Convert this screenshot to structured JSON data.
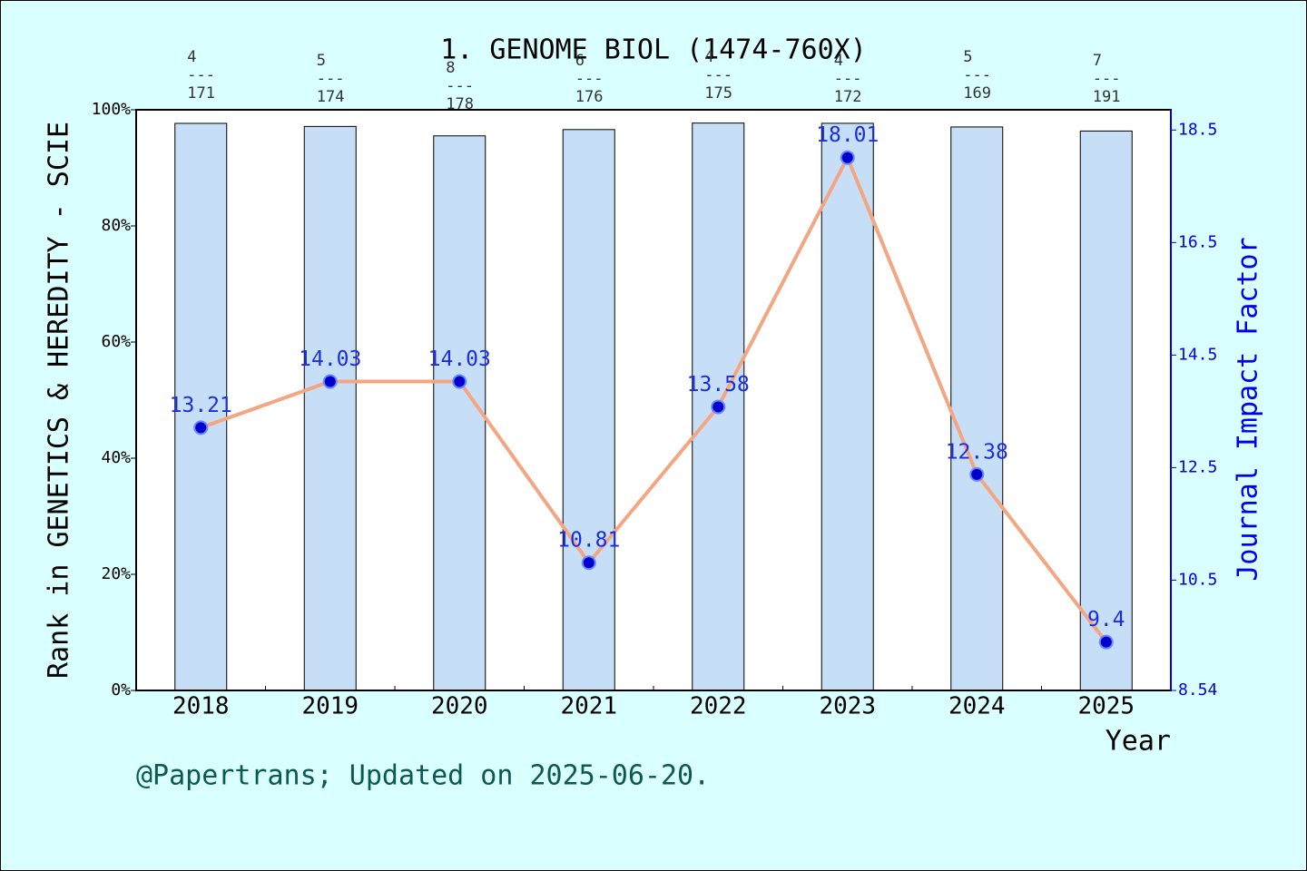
{
  "chart_data": {
    "type": "bar",
    "title": "1. GENOME BIOL (1474-760X)",
    "x_label": "Year",
    "y_label": "Rank in GENETICS & HEREDITY - SCIE",
    "y2_label": "Journal Impact Factor",
    "note": "@Papertrans; Updated on 2025-06-20.",
    "categories": [
      "2018",
      "2019",
      "2020",
      "2021",
      "2022",
      "2023",
      "2024",
      "2025"
    ],
    "ylim": [
      0,
      100
    ],
    "yticks": [
      {
        "value": 0,
        "label": "0%"
      },
      {
        "value": 20,
        "label": "20%"
      },
      {
        "value": 40,
        "label": "40%"
      },
      {
        "value": 60,
        "label": "60%"
      },
      {
        "value": 80,
        "label": "80%"
      },
      {
        "value": 100,
        "label": "100%"
      }
    ],
    "y2lim": [
      8.54,
      18.86
    ],
    "y2ticks": [
      8.54,
      10.5,
      12.5,
      14.5,
      16.5,
      18.5
    ],
    "series": [
      {
        "type": "bar",
        "color": "#c6dff7",
        "values": [
          97.66,
          97.13,
          95.51,
          96.59,
          97.71,
          97.67,
          97.04,
          96.34
        ]
      },
      {
        "type": "line",
        "axis": "y2",
        "color": "#f4a582",
        "values": [
          13.21,
          14.03,
          14.03,
          10.81,
          13.58,
          18.01,
          12.38,
          9.4
        ]
      }
    ],
    "rank_annotations": {
      "ranks": [
        4,
        5,
        8,
        6,
        4,
        4,
        5,
        7
      ],
      "separator": "---",
      "totals": [
        171,
        174,
        178,
        176,
        175,
        172,
        169,
        191
      ]
    }
  }
}
